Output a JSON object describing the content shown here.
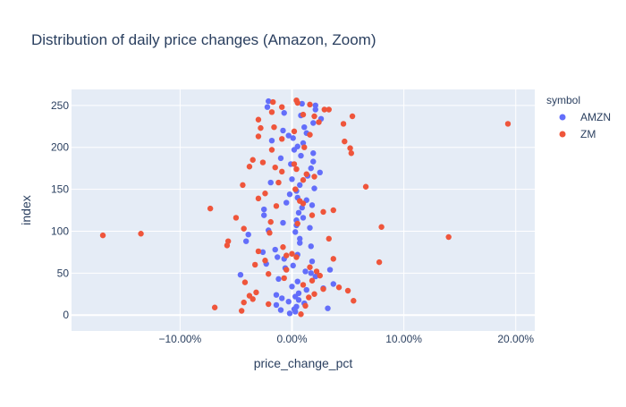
{
  "chart_data": {
    "type": "scatter",
    "title": "Distribution of daily price changes (Amazon, Zoom)",
    "xlabel": "price_change_pct",
    "ylabel": "index",
    "xlim": [
      -0.197,
      0.217
    ],
    "ylim": [
      -19,
      269
    ],
    "x_ticks": [
      -0.1,
      0.0,
      0.1,
      0.2
    ],
    "x_tick_labels": [
      "−10.00%",
      "0.00%",
      "10.00%",
      "20.00%"
    ],
    "y_ticks": [
      0,
      50,
      100,
      150,
      200,
      250
    ],
    "y_tick_labels": [
      "0",
      "50",
      "100",
      "150",
      "200",
      "250"
    ],
    "grid": true,
    "legend": {
      "title": "symbol",
      "placement": "right"
    },
    "series": [
      {
        "name": "AMZN",
        "color": "#636efa",
        "points": [
          [
            -0.002,
            2
          ],
          [
            0.003,
            4
          ],
          [
            -0.01,
            6
          ],
          [
            0.002,
            7
          ],
          [
            0.032,
            8
          ],
          [
            0.004,
            10
          ],
          [
            -0.014,
            12
          ],
          [
            0.011,
            14
          ],
          [
            -0.003,
            16
          ],
          [
            0.006,
            18
          ],
          [
            -0.009,
            20
          ],
          [
            0.003,
            22
          ],
          [
            -0.014,
            24
          ],
          [
            0.006,
            26
          ],
          [
            0.013,
            30
          ],
          [
            0.028,
            32
          ],
          [
            0.0,
            34
          ],
          [
            0.037,
            37
          ],
          [
            0.005,
            40
          ],
          [
            -0.012,
            43
          ],
          [
            0.021,
            46
          ],
          [
            -0.046,
            48
          ],
          [
            0.017,
            50
          ],
          [
            0.012,
            52
          ],
          [
            0.034,
            54
          ],
          [
            -0.006,
            56
          ],
          [
            0.001,
            59
          ],
          [
            -0.023,
            61
          ],
          [
            0.018,
            64
          ],
          [
            -0.007,
            67
          ],
          [
            -0.013,
            69
          ],
          [
            0.005,
            72
          ],
          [
            -0.026,
            75
          ],
          [
            -0.015,
            78
          ],
          [
            0.017,
            82
          ],
          [
            0.007,
            86
          ],
          [
            -0.041,
            88
          ],
          [
            0.007,
            91
          ],
          [
            -0.039,
            96
          ],
          [
            0.003,
            99
          ],
          [
            -0.021,
            101
          ],
          [
            0.016,
            104
          ],
          [
            0.004,
            107
          ],
          [
            -0.008,
            110
          ],
          [
            0.004,
            113
          ],
          [
            0.01,
            116
          ],
          [
            -0.025,
            119
          ],
          [
            0.006,
            122
          ],
          [
            -0.025,
            126
          ],
          [
            0.009,
            128
          ],
          [
            0.018,
            131
          ],
          [
            -0.005,
            134
          ],
          [
            0.013,
            137
          ],
          [
            0.005,
            140
          ],
          [
            -0.002,
            144
          ],
          [
            0.004,
            148
          ],
          [
            0.02,
            151
          ],
          [
            0.007,
            155
          ],
          [
            -0.019,
            158
          ],
          [
            0.0,
            162
          ],
          [
            0.014,
            166
          ],
          [
            0.025,
            170
          ],
          [
            0.017,
            175
          ],
          [
            -0.001,
            180
          ],
          [
            0.019,
            183
          ],
          [
            -0.01,
            187
          ],
          [
            0.008,
            190
          ],
          [
            0.019,
            193
          ],
          [
            0.002,
            197
          ],
          [
            0.005,
            201
          ],
          [
            0.01,
            205
          ],
          [
            -0.018,
            208
          ],
          [
            0.001,
            211
          ],
          [
            -0.003,
            214
          ],
          [
            0.013,
            217
          ],
          [
            -0.008,
            220
          ],
          [
            0.011,
            224
          ],
          [
            0.019,
            229
          ],
          [
            0.026,
            234
          ],
          [
            0.008,
            238
          ],
          [
            -0.007,
            241
          ],
          [
            0.021,
            245
          ],
          [
            -0.022,
            248
          ],
          [
            0.021,
            250
          ],
          [
            0.009,
            252
          ],
          [
            -0.021,
            255
          ]
        ]
      },
      {
        "name": "ZM",
        "color": "#ef553b",
        "points": [
          [
            0.008,
            1
          ],
          [
            -0.045,
            5
          ],
          [
            -0.069,
            9
          ],
          [
            0.012,
            11
          ],
          [
            -0.021,
            13
          ],
          [
            -0.043,
            15
          ],
          [
            0.055,
            17
          ],
          [
            -0.035,
            19
          ],
          [
            0.015,
            21
          ],
          [
            -0.038,
            23
          ],
          [
            -0.032,
            27
          ],
          [
            0.02,
            25
          ],
          [
            0.05,
            29
          ],
          [
            0.028,
            31
          ],
          [
            0.042,
            33
          ],
          [
            0.01,
            36
          ],
          [
            -0.042,
            39
          ],
          [
            0.018,
            41
          ],
          [
            -0.007,
            44
          ],
          [
            0.025,
            47
          ],
          [
            -0.021,
            49
          ],
          [
            0.022,
            52
          ],
          [
            -0.005,
            54
          ],
          [
            0.016,
            57
          ],
          [
            -0.033,
            60
          ],
          [
            0.078,
            63
          ],
          [
            -0.024,
            65
          ],
          [
            0.037,
            67
          ],
          [
            0.004,
            69
          ],
          [
            -0.005,
            71
          ],
          [
            0.0,
            73
          ],
          [
            -0.03,
            76
          ],
          [
            -0.008,
            81
          ],
          [
            -0.058,
            83
          ],
          [
            -0.057,
            88
          ],
          [
            0.033,
            91
          ],
          [
            -0.169,
            95
          ],
          [
            -0.135,
            97
          ],
          [
            0.14,
            93
          ],
          [
            -0.02,
            98
          ],
          [
            -0.043,
            103
          ],
          [
            0.08,
            105
          ],
          [
            0.005,
            109
          ],
          [
            -0.019,
            111
          ],
          [
            -0.05,
            116
          ],
          [
            0.018,
            119
          ],
          [
            0.028,
            123
          ],
          [
            0.037,
            125
          ],
          [
            -0.073,
            127
          ],
          [
            -0.014,
            130
          ],
          [
            0.01,
            133
          ],
          [
            0.007,
            136
          ],
          [
            -0.03,
            139
          ],
          [
            -0.024,
            145
          ],
          [
            -0.044,
            155
          ],
          [
            0.066,
            153
          ],
          [
            0.003,
            150
          ],
          [
            -0.012,
            158
          ],
          [
            0.01,
            161
          ],
          [
            0.02,
            165
          ],
          [
            0.013,
            168
          ],
          [
            -0.009,
            171
          ],
          [
            0.004,
            174
          ],
          [
            -0.015,
            176
          ],
          [
            -0.038,
            177
          ],
          [
            0.002,
            180
          ],
          [
            -0.026,
            182
          ],
          [
            -0.035,
            185
          ],
          [
            0.053,
            193
          ],
          [
            -0.018,
            197
          ],
          [
            0.011,
            200
          ],
          [
            0.052,
            199
          ],
          [
            0.047,
            207
          ],
          [
            -0.009,
            210
          ],
          [
            -0.03,
            213
          ],
          [
            0.016,
            215
          ],
          [
            0.002,
            219
          ],
          [
            -0.016,
            224
          ],
          [
            0.046,
            228
          ],
          [
            -0.028,
            223
          ],
          [
            0.193,
            228
          ],
          [
            0.024,
            230
          ],
          [
            -0.03,
            233
          ],
          [
            0.02,
            237
          ],
          [
            0.054,
            237
          ],
          [
            0.01,
            239
          ],
          [
            -0.018,
            242
          ],
          [
            0.029,
            245
          ],
          [
            0.033,
            245
          ],
          [
            -0.009,
            248
          ],
          [
            0.016,
            251
          ],
          [
            0.005,
            253
          ],
          [
            -0.017,
            254
          ],
          [
            0.004,
            256
          ]
        ]
      }
    ]
  }
}
